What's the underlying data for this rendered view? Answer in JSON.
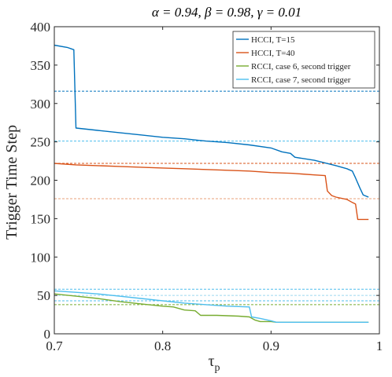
{
  "chart_data": {
    "type": "line",
    "title": "α = 0.94, β = 0.98, γ = 0.01",
    "xlabel": "τ",
    "xlabel_sub": "p",
    "ylabel": "Trigger Time Step",
    "xlim": [
      0.7,
      1.0
    ],
    "ylim": [
      0,
      400
    ],
    "xticks": [
      0.7,
      0.8,
      0.9,
      1.0
    ],
    "xtick_labels": [
      "0.7",
      "0.8",
      "0.9",
      "1"
    ],
    "yticks": [
      0,
      50,
      100,
      150,
      200,
      250,
      300,
      350,
      400
    ],
    "ytick_labels": [
      "0",
      "50",
      "100",
      "150",
      "200",
      "250",
      "300",
      "350",
      "400"
    ],
    "grid": false,
    "legend_position": "top-right",
    "series": [
      {
        "name": "HCCI, T=15",
        "color": "#0072BD",
        "x": [
          0.7,
          0.712,
          0.716,
          0.718,
          0.72,
          0.74,
          0.76,
          0.78,
          0.8,
          0.82,
          0.84,
          0.86,
          0.88,
          0.9,
          0.91,
          0.918,
          0.922,
          0.94,
          0.96,
          0.97,
          0.975,
          0.978,
          0.982,
          0.985,
          0.99
        ],
        "y": [
          376,
          373,
          371,
          370,
          268,
          265,
          262,
          259,
          256,
          254,
          251,
          249,
          246,
          242,
          237,
          235,
          230,
          226,
          219,
          215,
          212,
          203,
          190,
          181,
          178
        ]
      },
      {
        "name": "HCCI, T=40",
        "color": "#D95319",
        "x": [
          0.7,
          0.72,
          0.74,
          0.76,
          0.78,
          0.8,
          0.82,
          0.84,
          0.86,
          0.88,
          0.9,
          0.92,
          0.94,
          0.95,
          0.952,
          0.956,
          0.96,
          0.97,
          0.975,
          0.978,
          0.98,
          0.99
        ],
        "y": [
          222,
          220,
          219,
          218,
          217,
          216,
          215,
          214,
          213,
          212,
          210,
          209,
          207,
          206,
          186,
          180,
          178,
          175,
          171,
          169,
          149,
          149
        ]
      },
      {
        "name": "RCCI, case 6, second trigger",
        "color": "#77AC30",
        "x": [
          0.7,
          0.72,
          0.74,
          0.76,
          0.78,
          0.8,
          0.81,
          0.82,
          0.83,
          0.835,
          0.85,
          0.87,
          0.88,
          0.885,
          0.89,
          0.9,
          0.905,
          0.92,
          0.95,
          0.99
        ],
        "y": [
          52,
          49,
          46,
          42,
          39,
          36,
          35,
          31,
          30,
          24,
          24,
          23,
          22,
          18,
          16,
          16,
          15,
          15,
          15,
          15
        ]
      },
      {
        "name": "RCCI, case 7, second trigger",
        "color": "#4DBEEE",
        "x": [
          0.7,
          0.72,
          0.74,
          0.76,
          0.78,
          0.8,
          0.82,
          0.84,
          0.86,
          0.88,
          0.882,
          0.89,
          0.9,
          0.905,
          0.92,
          0.95,
          0.99
        ],
        "y": [
          56,
          54,
          52,
          49,
          46,
          43,
          40,
          38,
          36,
          35,
          22,
          20,
          17,
          15,
          15,
          15,
          15
        ]
      }
    ],
    "reference_lines": [
      {
        "y": 316,
        "color": "#0072BD"
      },
      {
        "y": 251,
        "color": "#4DBEEE"
      },
      {
        "y": 222,
        "color": "#D95319"
      },
      {
        "y": 176,
        "color": "#E8A07A"
      },
      {
        "y": 58,
        "color": "#4DBEEE"
      },
      {
        "y": 50,
        "color": "#9DD8F0"
      },
      {
        "y": 43,
        "color": "#4DBEEE"
      },
      {
        "y": 38,
        "color": "#77AC30"
      }
    ]
  }
}
